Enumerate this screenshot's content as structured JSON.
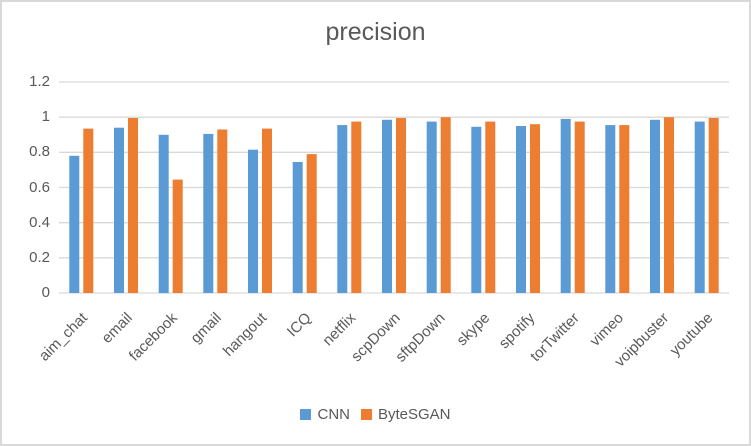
{
  "frame": {
    "background_color": "#ffffff",
    "border_color": "#d9d9d9"
  },
  "chart_data": {
    "type": "bar",
    "title": "precision",
    "xlabel": "",
    "ylabel": "",
    "categories": [
      "aim_chat",
      "email",
      "facebook",
      "gmail",
      "hangout",
      "ICQ",
      "netflix",
      "scpDown",
      "sftpDown",
      "skype",
      "spotify",
      "torTwitter",
      "vimeo",
      "voipbuster",
      "youtube"
    ],
    "series": [
      {
        "name": "CNN",
        "color": "#5B9BD5",
        "values": [
          0.78,
          0.94,
          0.9,
          0.905,
          0.815,
          0.745,
          0.955,
          0.985,
          0.975,
          0.945,
          0.95,
          0.99,
          0.955,
          0.985,
          0.975
        ]
      },
      {
        "name": "ByteSGAN",
        "color": "#ED7D31",
        "values": [
          0.935,
          0.995,
          0.645,
          0.93,
          0.935,
          0.79,
          0.975,
          0.995,
          1.0,
          0.975,
          0.96,
          0.975,
          0.955,
          1.0,
          0.995
        ]
      }
    ],
    "ylim": [
      0,
      1.2
    ],
    "yticks": [
      0,
      0.2,
      0.4,
      0.6,
      0.8,
      1,
      1.2
    ],
    "ytick_labels": [
      "0",
      "0.2",
      "0.4",
      "0.6",
      "0.8",
      "1",
      "1.2"
    ],
    "grid": true,
    "gridline_color": "#d9d9d9",
    "axis_text_color": "#595959",
    "title_color": "#595959",
    "legend_position": "bottom",
    "x_labels_rotation_deg": -45
  }
}
